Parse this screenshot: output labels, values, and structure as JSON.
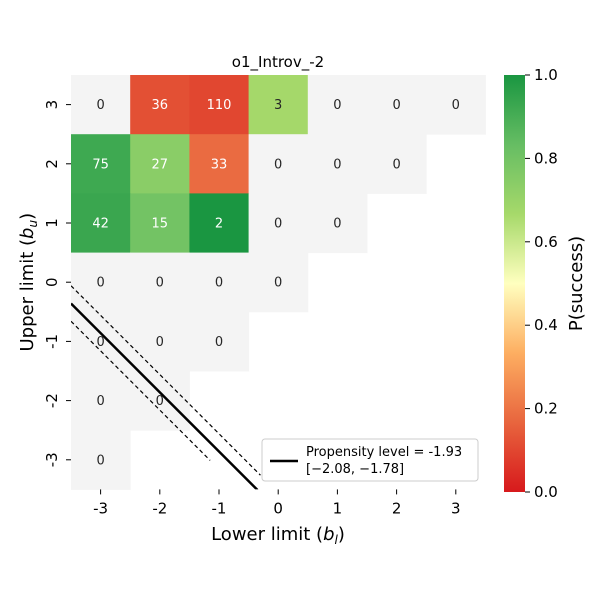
{
  "chart_data": {
    "type": "heatmap",
    "title": "o1_Introv_-2",
    "xlabel": "Lower limit",
    "xlabel_sub": "l",
    "ylabel": "Upper limit",
    "ylabel_sub": "u",
    "x_categories": [
      "-3",
      "-2",
      "-1",
      "0",
      "1",
      "2",
      "3"
    ],
    "y_categories": [
      "3",
      "2",
      "1",
      "0",
      "-1",
      "-2",
      "-3"
    ],
    "cells": [
      {
        "x": "-3",
        "y": "3",
        "count": "0",
        "p": null
      },
      {
        "x": "-2",
        "y": "3",
        "count": "36",
        "p": 0.12
      },
      {
        "x": "-1",
        "y": "3",
        "count": "110",
        "p": 0.1
      },
      {
        "x": "0",
        "y": "3",
        "count": "3",
        "p": 0.67
      },
      {
        "x": "1",
        "y": "3",
        "count": "0",
        "p": null
      },
      {
        "x": "2",
        "y": "3",
        "count": "0",
        "p": null
      },
      {
        "x": "3",
        "y": "3",
        "count": "0",
        "p": null
      },
      {
        "x": "-3",
        "y": "2",
        "count": "75",
        "p": 0.92
      },
      {
        "x": "-2",
        "y": "2",
        "count": "27",
        "p": 0.74
      },
      {
        "x": "-1",
        "y": "2",
        "count": "33",
        "p": 0.18
      },
      {
        "x": "0",
        "y": "2",
        "count": "0",
        "p": null
      },
      {
        "x": "1",
        "y": "2",
        "count": "0",
        "p": null
      },
      {
        "x": "2",
        "y": "2",
        "count": "0",
        "p": null
      },
      {
        "x": "-3",
        "y": "1",
        "count": "42",
        "p": 0.93
      },
      {
        "x": "-2",
        "y": "1",
        "count": "15",
        "p": 0.8
      },
      {
        "x": "-1",
        "y": "1",
        "count": "2",
        "p": 1.0
      },
      {
        "x": "0",
        "y": "1",
        "count": "0",
        "p": null
      },
      {
        "x": "1",
        "y": "1",
        "count": "0",
        "p": null
      },
      {
        "x": "-3",
        "y": "0",
        "count": "0",
        "p": null
      },
      {
        "x": "-2",
        "y": "0",
        "count": "0",
        "p": null
      },
      {
        "x": "-1",
        "y": "0",
        "count": "0",
        "p": null
      },
      {
        "x": "0",
        "y": "0",
        "count": "0",
        "p": null
      },
      {
        "x": "-3",
        "y": "-1",
        "count": "0",
        "p": null
      },
      {
        "x": "-2",
        "y": "-1",
        "count": "0",
        "p": null
      },
      {
        "x": "-1",
        "y": "-1",
        "count": "0",
        "p": null
      },
      {
        "x": "-3",
        "y": "-2",
        "count": "0",
        "p": null
      },
      {
        "x": "-2",
        "y": "-2",
        "count": "0",
        "p": null
      },
      {
        "x": "-3",
        "y": "-3",
        "count": "0",
        "p": null
      }
    ],
    "empty_cell_color": "#f4f4f4",
    "colorbar": {
      "label": "P(success)",
      "range": [
        0,
        1
      ],
      "ticks": [
        "0.0",
        "0.2",
        "0.4",
        "0.6",
        "0.8",
        "1.0"
      ],
      "stops": [
        "#d7191c",
        "#e8653e",
        "#fdae61",
        "#ffffbf",
        "#a6d96a",
        "#66bd63",
        "#1a9641"
      ]
    },
    "propensity_line": {
      "level": -1.93,
      "ci": [
        -2.08,
        -1.78
      ]
    },
    "legend": {
      "position": "lower-right",
      "line1": "Propensity level = -1.93",
      "line2": "[−2.08, −1.78]"
    }
  }
}
